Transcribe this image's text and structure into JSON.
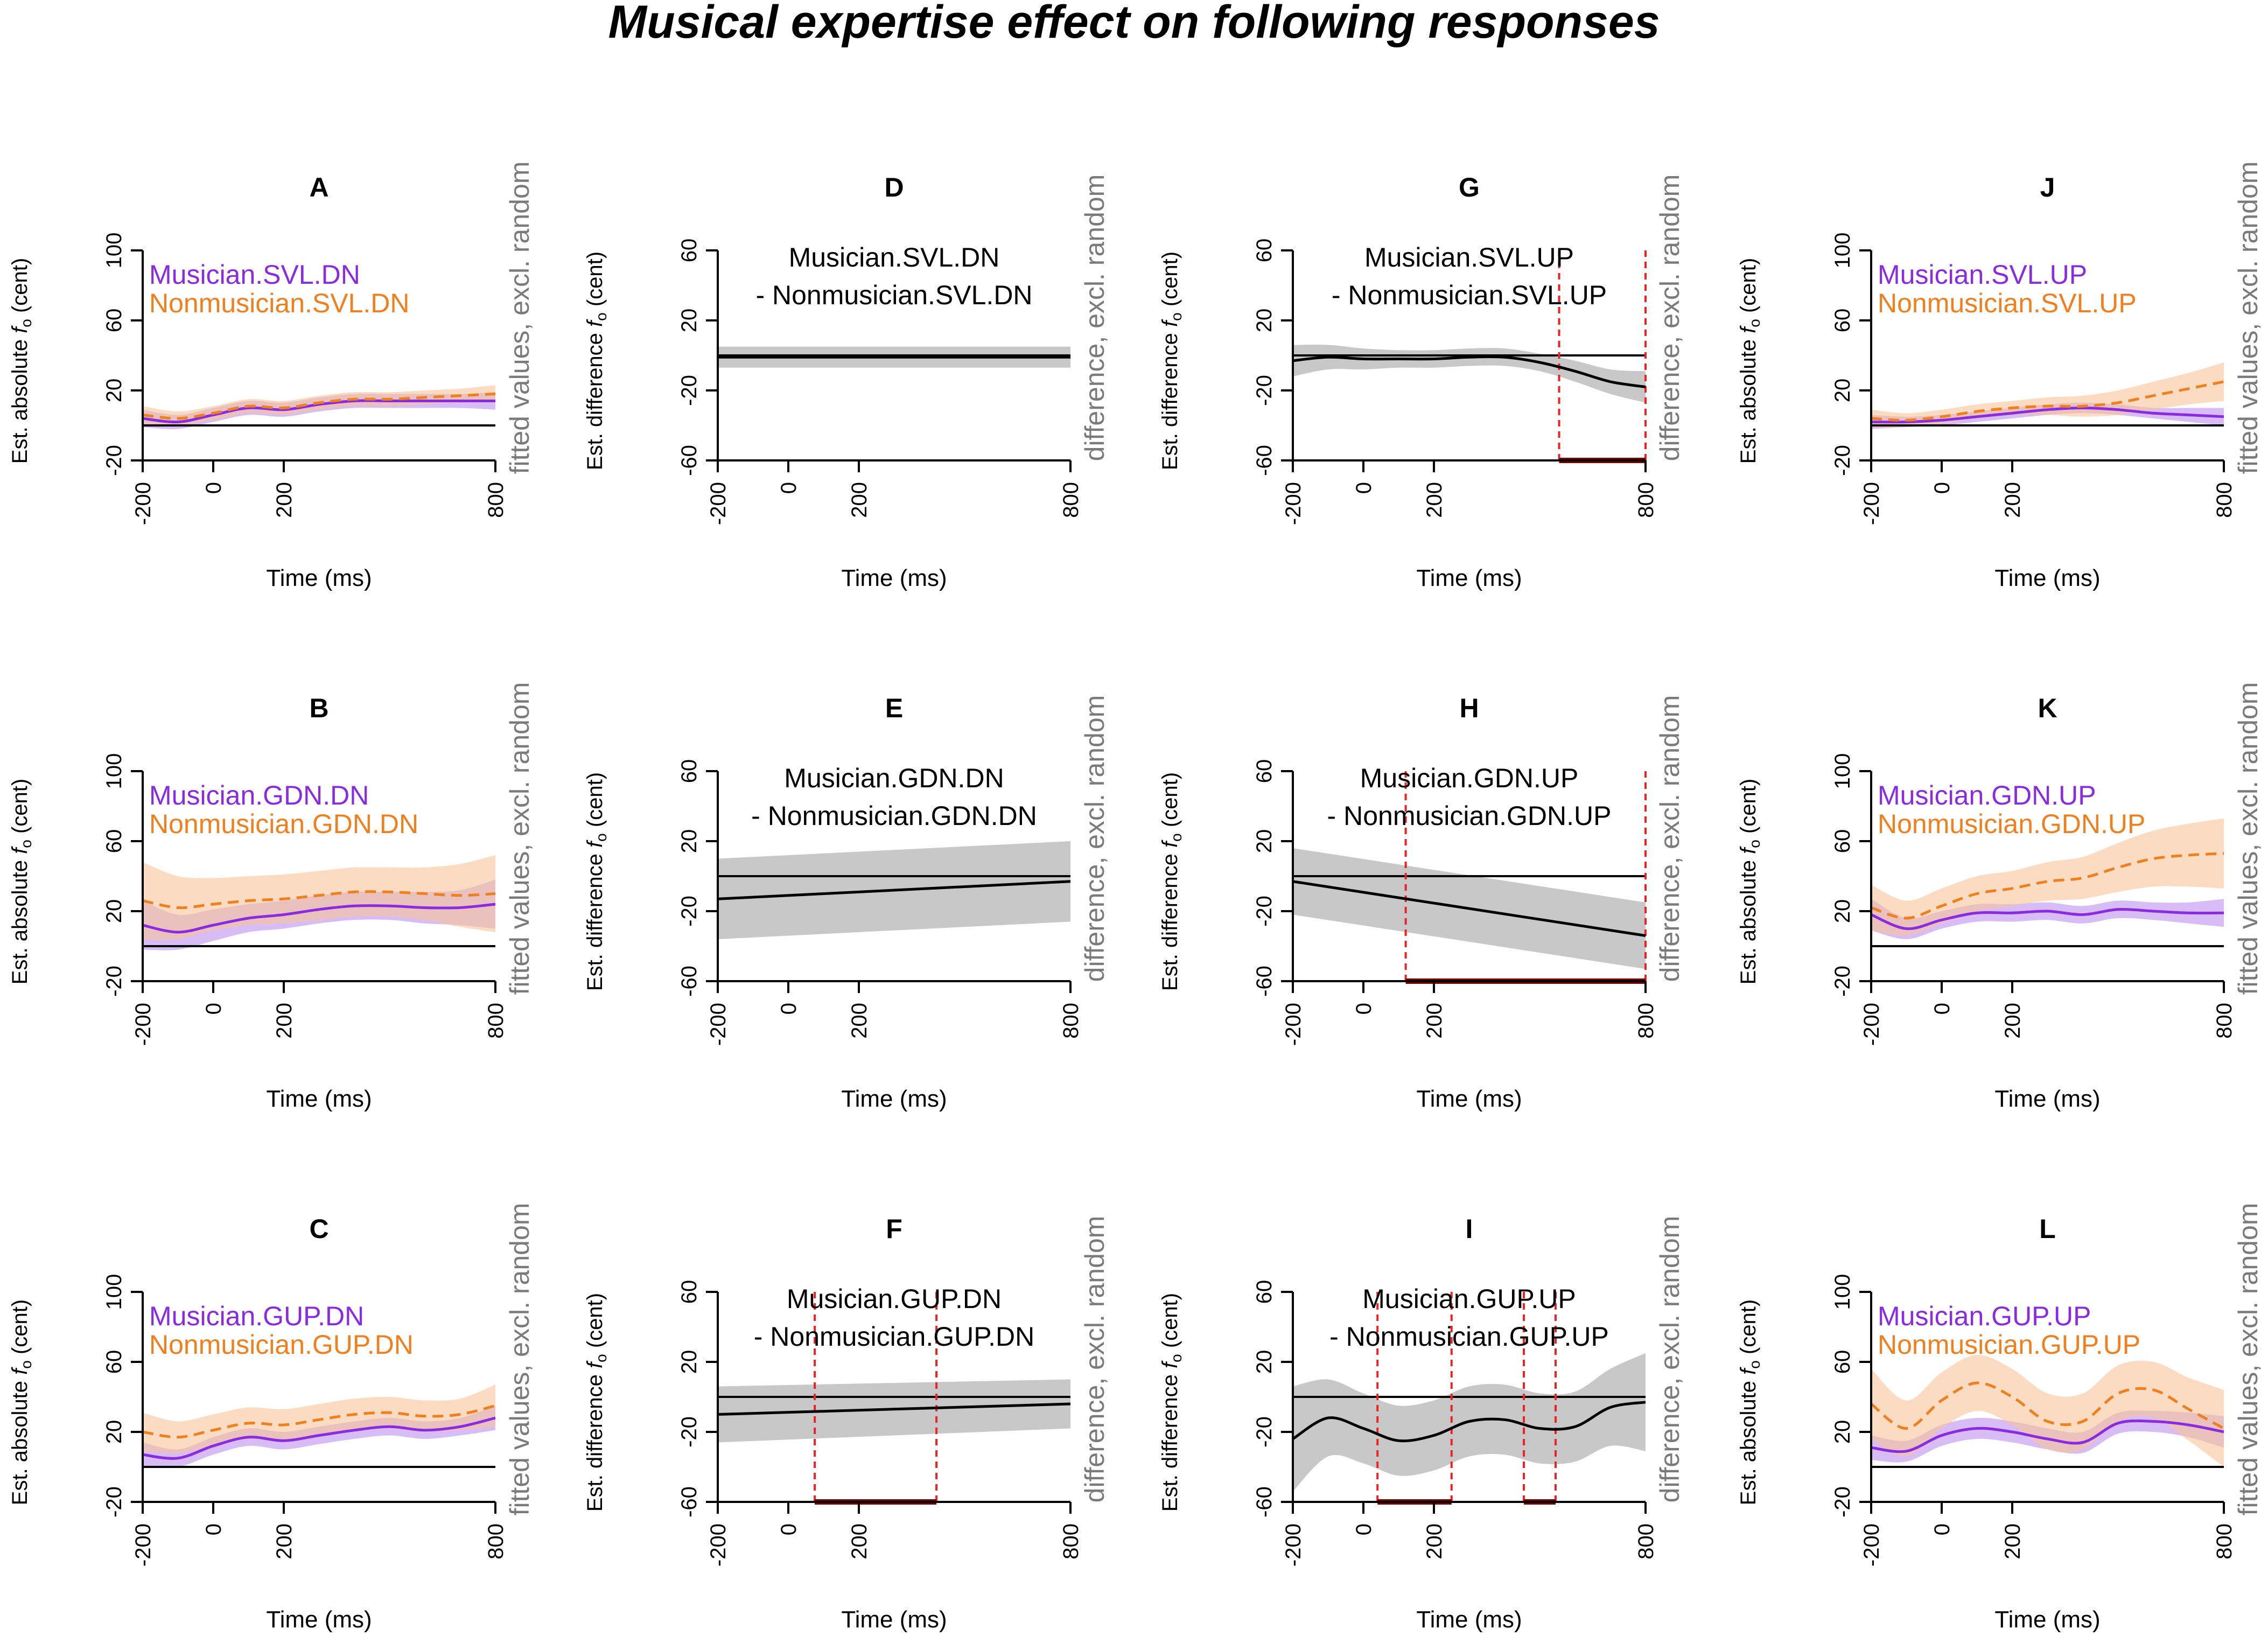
{
  "figure": {
    "title": "Musical expertise effect on following responses"
  },
  "colors": {
    "musician": "#8a2be2",
    "nonmusician": "#f07f1e",
    "musician_band": "#c9a6f2",
    "nonmusician_band": "#f9c49a",
    "difference_band": "#c8c8c8",
    "significance": "#ee2222",
    "significance_bar": "#7a0000",
    "axis": "#000000",
    "side_label": "#7a7a7a"
  },
  "common": {
    "xlabel": "Time (ms)",
    "xlim": [
      -200,
      800
    ],
    "xticks": [
      -200,
      0,
      200,
      800
    ],
    "abs_ylabel_prefix": "Est. absolute ",
    "diff_ylabel_prefix": "Est. difference ",
    "ylabel_symbol": "f",
    "ylabel_subscript": "o",
    "ylabel_suffix": " (cent)",
    "abs_side_label": "fitted values, excl. random",
    "diff_side_label": "difference, excl. random",
    "abs_ylim": [
      -20,
      100
    ],
    "abs_yticks": [
      -20,
      20,
      60,
      100
    ],
    "diff_ylim": [
      -60,
      60
    ],
    "diff_yticks": [
      -60,
      -20,
      20,
      60
    ]
  },
  "chart_data": [
    {
      "panel": "A",
      "type": "line",
      "kind": "absolute",
      "legend": [
        "Musician.SVL.DN",
        "Nonmusician.SVL.DN"
      ],
      "x": [
        -200,
        -100,
        0,
        100,
        200,
        300,
        400,
        500,
        600,
        700,
        800
      ],
      "series": [
        {
          "name": "Musician.SVL.DN",
          "values": [
            4,
            2,
            6,
            10,
            9,
            12,
            14,
            14,
            14,
            14,
            14
          ],
          "ci_halfwidth": [
            5,
            4,
            4,
            4,
            4,
            4,
            4,
            4,
            4,
            4,
            5
          ]
        },
        {
          "name": "Nonmusician.SVL.DN",
          "values": [
            6,
            4,
            7,
            11,
            10,
            13,
            15,
            15,
            16,
            17,
            18
          ],
          "ci_halfwidth": [
            5,
            4,
            4,
            4,
            4,
            4,
            4,
            4,
            4,
            4,
            5
          ]
        }
      ]
    },
    {
      "panel": "B",
      "type": "line",
      "kind": "absolute",
      "legend": [
        "Musician.GDN.DN",
        "Nonmusician.GDN.DN"
      ],
      "x": [
        -200,
        -100,
        0,
        100,
        200,
        300,
        400,
        500,
        600,
        700,
        800
      ],
      "series": [
        {
          "name": "Musician.GDN.DN",
          "values": [
            12,
            8,
            12,
            16,
            18,
            21,
            23,
            23,
            22,
            22,
            24
          ],
          "ci_halfwidth": [
            14,
            10,
            9,
            8,
            8,
            8,
            8,
            8,
            9,
            10,
            14
          ]
        },
        {
          "name": "Nonmusician.GDN.DN",
          "values": [
            26,
            22,
            24,
            26,
            27,
            29,
            31,
            31,
            30,
            29,
            30
          ],
          "ci_halfwidth": [
            22,
            18,
            15,
            14,
            14,
            14,
            14,
            14,
            15,
            18,
            22
          ]
        }
      ]
    },
    {
      "panel": "C",
      "type": "line",
      "kind": "absolute",
      "legend": [
        "Musician.GUP.DN",
        "Nonmusician.GUP.DN"
      ],
      "x": [
        -200,
        -100,
        0,
        100,
        200,
        300,
        400,
        500,
        600,
        700,
        800
      ],
      "series": [
        {
          "name": "Musician.GUP.DN",
          "values": [
            7,
            5,
            12,
            17,
            15,
            18,
            21,
            23,
            21,
            23,
            28
          ],
          "ci_halfwidth": [
            7,
            5,
            5,
            5,
            5,
            5,
            5,
            5,
            5,
            5,
            7
          ]
        },
        {
          "name": "Nonmusician.GUP.DN",
          "values": [
            20,
            17,
            21,
            25,
            24,
            27,
            30,
            31,
            29,
            30,
            35
          ],
          "ci_halfwidth": [
            11,
            9,
            9,
            9,
            9,
            9,
            9,
            9,
            9,
            9,
            12
          ]
        }
      ]
    },
    {
      "panel": "D",
      "type": "line",
      "kind": "difference",
      "label_lines": [
        "Musician.SVL.DN",
        "- Nonmusician.SVL.DN"
      ],
      "x": [
        -200,
        800
      ],
      "series": [
        {
          "name": "Musician.SVL.DN - Nonmusician.SVL.DN",
          "values": [
            -1,
            -1
          ],
          "ci_halfwidth": [
            6,
            6
          ]
        }
      ],
      "significant_intervals": []
    },
    {
      "panel": "E",
      "type": "line",
      "kind": "difference",
      "label_lines": [
        "Musician.GDN.DN",
        "- Nonmusician.GDN.DN"
      ],
      "x": [
        -200,
        800
      ],
      "series": [
        {
          "name": "Musician.GDN.DN - Nonmusician.GDN.DN",
          "values": [
            -13,
            -3
          ],
          "ci_halfwidth": [
            23,
            23
          ]
        }
      ],
      "significant_intervals": []
    },
    {
      "panel": "F",
      "type": "line",
      "kind": "difference",
      "label_lines": [
        "Musician.GUP.DN",
        "- Nonmusician.GUP.DN"
      ],
      "x": [
        -200,
        800
      ],
      "series": [
        {
          "name": "Musician.GUP.DN - Nonmusician.GUP.DN",
          "values": [
            -10,
            -4
          ],
          "ci_halfwidth": [
            16,
            14
          ]
        }
      ],
      "significant_intervals": [
        [
          75,
          420
        ]
      ]
    },
    {
      "panel": "G",
      "type": "line",
      "kind": "difference",
      "label_lines": [
        "Musician.SVL.UP",
        "- Nonmusician.SVL.UP"
      ],
      "x": [
        -200,
        -100,
        0,
        100,
        200,
        300,
        400,
        500,
        600,
        700,
        800
      ],
      "series": [
        {
          "name": "Musician.SVL.UP - Nonmusician.SVL.UP",
          "values": [
            -3,
            -1,
            -2,
            -2,
            -2,
            -1,
            -1,
            -4,
            -9,
            -15,
            -18
          ],
          "ci_halfwidth": [
            9,
            7,
            6,
            5,
            5,
            5,
            5,
            5,
            6,
            7,
            9
          ]
        }
      ],
      "significant_intervals": [
        [
          555,
          800
        ]
      ]
    },
    {
      "panel": "H",
      "type": "line",
      "kind": "difference",
      "label_lines": [
        "Musician.GDN.UP",
        "- Nonmusician.GDN.UP"
      ],
      "x": [
        -200,
        800
      ],
      "series": [
        {
          "name": "Musician.GDN.UP - Nonmusician.GDN.UP",
          "values": [
            -3,
            -34
          ],
          "ci_halfwidth": [
            19,
            19
          ]
        }
      ],
      "significant_intervals": [
        [
          120,
          800
        ]
      ]
    },
    {
      "panel": "I",
      "type": "line",
      "kind": "difference",
      "label_lines": [
        "Musician.GUP.UP",
        "- Nonmusician.GUP.UP"
      ],
      "x": [
        -200,
        -100,
        0,
        100,
        200,
        300,
        400,
        500,
        600,
        700,
        800
      ],
      "series": [
        {
          "name": "Musician.GUP.UP - Nonmusician.GUP.UP",
          "values": [
            -24,
            -12,
            -18,
            -25,
            -22,
            -14,
            -13,
            -18,
            -17,
            -6,
            -3
          ],
          "ci_halfwidth": [
            30,
            22,
            20,
            20,
            20,
            20,
            20,
            20,
            20,
            22,
            28
          ]
        }
      ],
      "significant_intervals": [
        [
          40,
          250
        ],
        [
          455,
          545
        ]
      ]
    },
    {
      "panel": "J",
      "type": "line",
      "kind": "absolute",
      "legend": [
        "Musician.SVL.UP",
        "Nonmusician.SVL.UP"
      ],
      "x": [
        -200,
        -100,
        0,
        100,
        200,
        300,
        400,
        500,
        600,
        700,
        800
      ],
      "series": [
        {
          "name": "Musician.SVL.UP",
          "values": [
            2,
            2,
            3,
            5,
            7,
            9,
            10,
            9,
            7,
            6,
            5
          ],
          "ci_halfwidth": [
            4,
            3,
            3,
            3,
            3,
            3,
            3,
            3,
            3,
            4,
            5
          ]
        },
        {
          "name": "Nonmusician.SVL.UP",
          "values": [
            4,
            3,
            5,
            8,
            10,
            11,
            11,
            13,
            17,
            21,
            25
          ],
          "ci_halfwidth": [
            5,
            4,
            4,
            4,
            4,
            5,
            6,
            7,
            8,
            9,
            11
          ]
        }
      ]
    },
    {
      "panel": "K",
      "type": "line",
      "kind": "absolute",
      "legend": [
        "Musician.GDN.UP",
        "Nonmusician.GDN.UP"
      ],
      "x": [
        -200,
        -100,
        0,
        100,
        200,
        300,
        400,
        500,
        600,
        700,
        800
      ],
      "series": [
        {
          "name": "Musician.GDN.UP",
          "values": [
            18,
            10,
            15,
            19,
            19,
            20,
            18,
            21,
            20,
            19,
            19
          ],
          "ci_halfwidth": [
            9,
            6,
            5,
            5,
            5,
            5,
            5,
            5,
            5,
            6,
            8
          ]
        },
        {
          "name": "Nonmusician.GDN.UP",
          "values": [
            22,
            16,
            23,
            30,
            33,
            37,
            39,
            45,
            50,
            52,
            53
          ],
          "ci_halfwidth": [
            13,
            10,
            10,
            10,
            10,
            11,
            12,
            14,
            16,
            18,
            20
          ]
        }
      ]
    },
    {
      "panel": "L",
      "type": "line",
      "kind": "absolute",
      "legend": [
        "Musician.GUP.UP",
        "Nonmusician.GUP.UP"
      ],
      "x": [
        -200,
        -100,
        0,
        100,
        200,
        300,
        400,
        500,
        600,
        700,
        800
      ],
      "series": [
        {
          "name": "Musician.GUP.UP",
          "values": [
            11,
            9,
            18,
            22,
            20,
            16,
            14,
            25,
            26,
            24,
            20
          ],
          "ci_halfwidth": [
            7,
            6,
            6,
            6,
            6,
            6,
            6,
            6,
            6,
            7,
            9
          ]
        },
        {
          "name": "Nonmusician.GUP.UP",
          "values": [
            36,
            22,
            38,
            48,
            40,
            26,
            26,
            42,
            44,
            33,
            22
          ],
          "ci_halfwidth": [
            20,
            16,
            16,
            16,
            16,
            16,
            16,
            16,
            16,
            18,
            22
          ]
        }
      ]
    }
  ]
}
